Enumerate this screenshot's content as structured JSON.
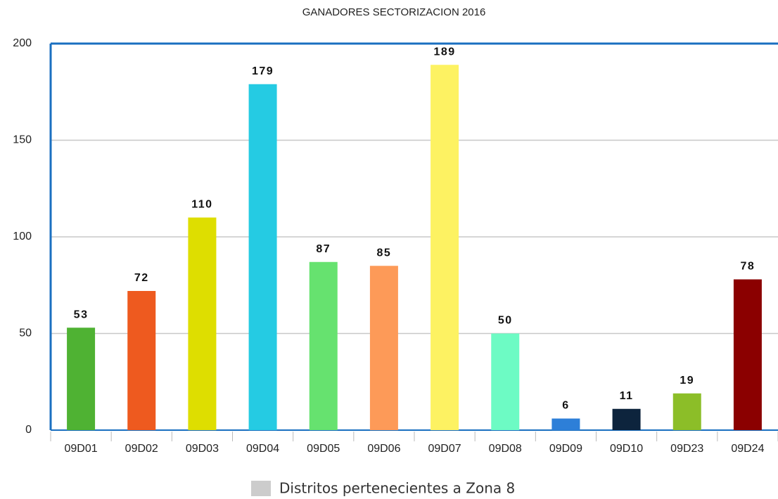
{
  "chart_data": {
    "type": "bar",
    "title": "GANADORES SECTORIZACION 2016",
    "categories": [
      "09D01",
      "09D02",
      "09D03",
      "09D04",
      "09D05",
      "09D06",
      "09D07",
      "09D08",
      "09D09",
      "09D10",
      "09D23",
      "09D24"
    ],
    "series": [
      {
        "name": "Distritos pertenecientes a Zona 8",
        "color": "#cccccc",
        "values": [
          53,
          72,
          110,
          179,
          87,
          85,
          189,
          50,
          6,
          11,
          19,
          78
        ],
        "colors": [
          "#4fb233",
          "#ee5a1f",
          "#dede00",
          "#25cbe3",
          "#66e26f",
          "#fd9a58",
          "#fdf262",
          "#6dfbc4",
          "#2d7fd8",
          "#0d243d",
          "#8cbe28",
          "#8b0000"
        ]
      }
    ],
    "ylim": [
      0,
      200
    ],
    "yticks": [
      0,
      50,
      100,
      150,
      200
    ],
    "grid": true,
    "legend": "bottom"
  }
}
